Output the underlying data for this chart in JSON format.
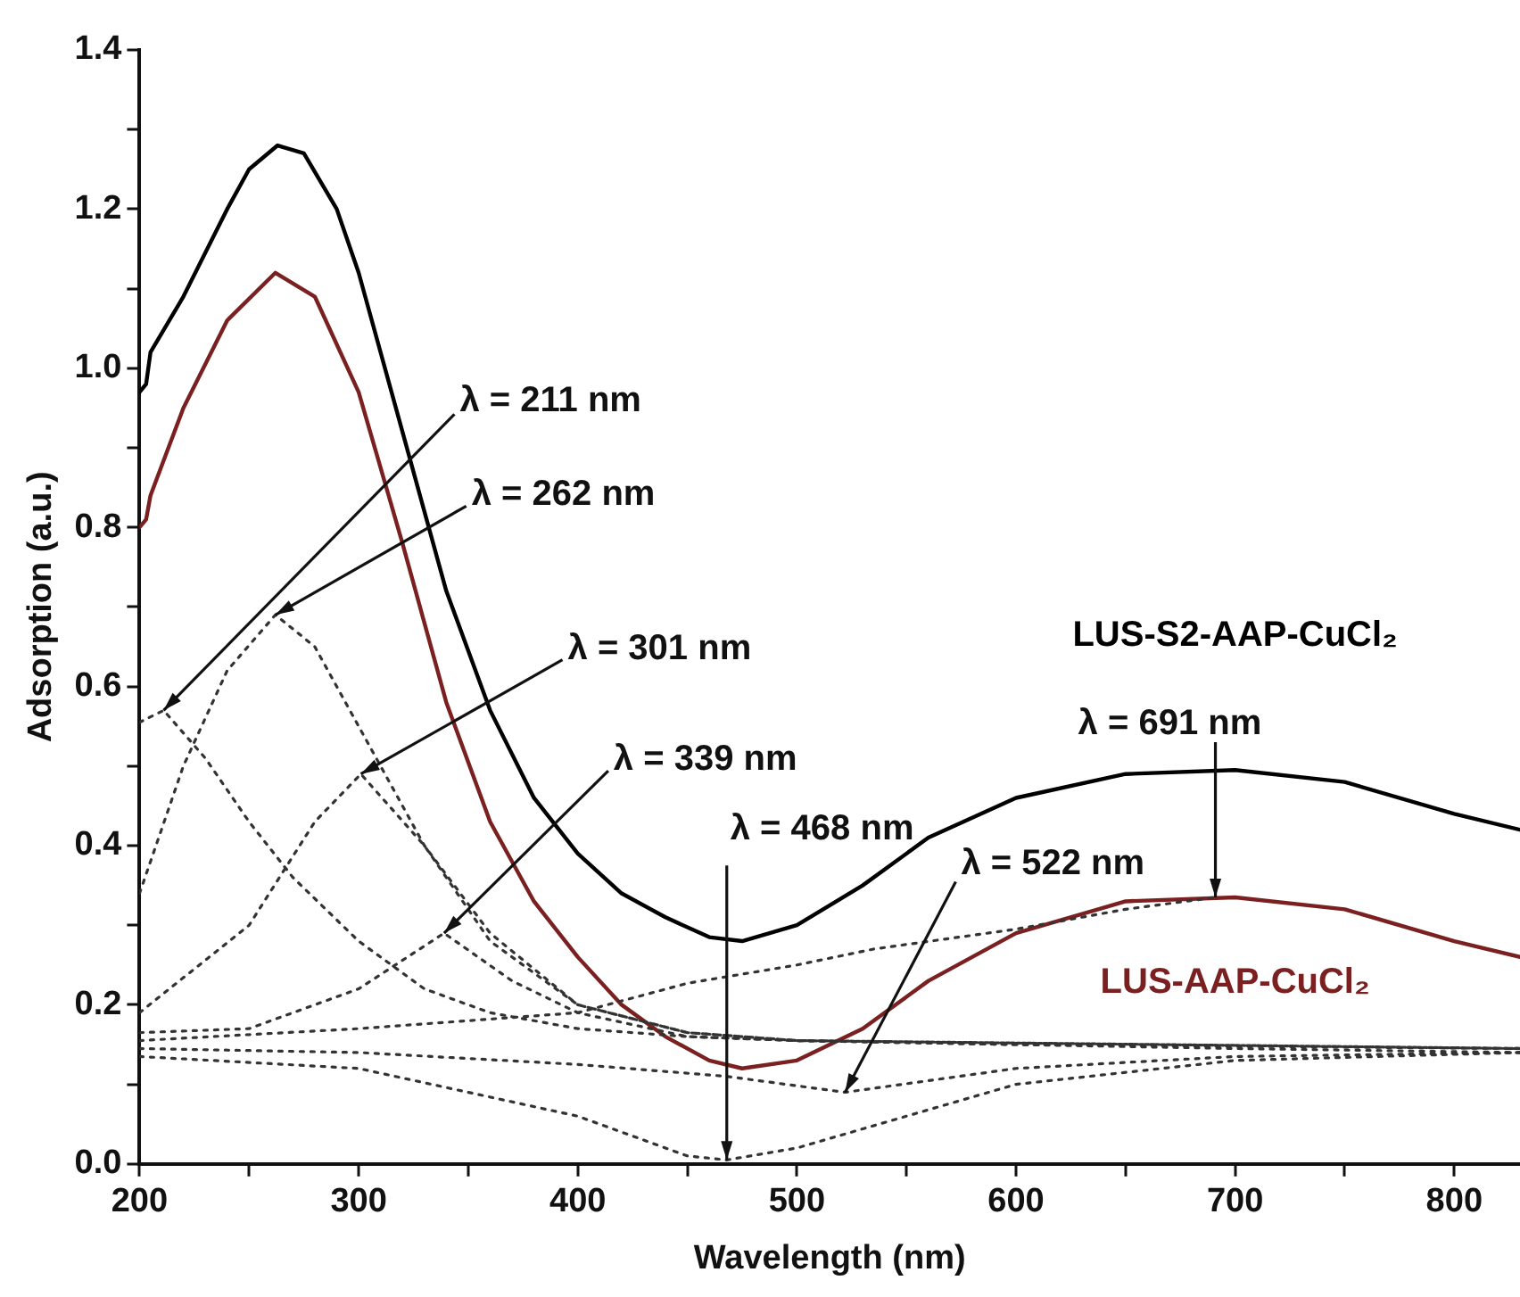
{
  "chart_data": {
    "type": "line",
    "xlabel": "Wavelength (nm)",
    "ylabel": "Adsorption (a.u.)",
    "xlim": [
      200,
      830
    ],
    "ylim": [
      0,
      1.4
    ],
    "xticks": [
      200,
      {
        "value": 250,
        "label": null
      },
      300,
      {
        "value": 350,
        "label": null
      },
      400,
      {
        "value": 450,
        "label": null
      },
      500,
      {
        "value": 550,
        "label": null
      },
      600,
      {
        "value": 650,
        "label": null
      },
      700,
      {
        "value": 750,
        "label": null
      },
      800
    ],
    "yticks": [
      {
        "value": 0,
        "label": "0.0"
      },
      {
        "value": 0.1,
        "label": null
      },
      {
        "value": 0.2,
        "label": "0.2"
      },
      {
        "value": 0.3,
        "label": null
      },
      {
        "value": 0.4,
        "label": "0.4"
      },
      {
        "value": 0.5,
        "label": null
      },
      {
        "value": 0.6,
        "label": "0.6"
      },
      {
        "value": 0.7,
        "label": null
      },
      {
        "value": 0.8,
        "label": "0.8"
      },
      {
        "value": 0.9,
        "label": null
      },
      {
        "value": 1.0,
        "label": "1.0"
      },
      {
        "value": 1.1,
        "label": null
      },
      {
        "value": 1.2,
        "label": "1.2"
      },
      {
        "value": 1.3,
        "label": null
      },
      {
        "value": 1.4,
        "label": "1.4"
      }
    ],
    "grid": false,
    "legend": false,
    "marker": "none",
    "series": [
      {
        "name": "LUS-S2-AAP-CuCl₂",
        "color": "#000000",
        "line_style": "solid",
        "x": [
          200,
          203,
          205,
          220,
          240,
          250,
          263,
          275,
          290,
          300,
          320,
          340,
          360,
          380,
          400,
          420,
          440,
          460,
          475,
          500,
          530,
          560,
          600,
          650,
          700,
          750,
          800,
          830
        ],
        "values": [
          0.97,
          0.98,
          1.02,
          1.09,
          1.2,
          1.25,
          1.28,
          1.27,
          1.2,
          1.12,
          0.92,
          0.72,
          0.57,
          0.46,
          0.39,
          0.34,
          0.31,
          0.285,
          0.28,
          0.3,
          0.35,
          0.41,
          0.46,
          0.49,
          0.495,
          0.48,
          0.44,
          0.42
        ]
      },
      {
        "name": "LUS-AAP-CuCl₂",
        "color": "#7a2020",
        "line_style": "solid",
        "x": [
          200,
          203,
          205,
          220,
          240,
          262,
          280,
          300,
          320,
          340,
          360,
          380,
          400,
          420,
          440,
          460,
          475,
          500,
          530,
          560,
          600,
          650,
          700,
          750,
          800,
          830
        ],
        "values": [
          0.8,
          0.81,
          0.84,
          0.95,
          1.06,
          1.12,
          1.09,
          0.97,
          0.78,
          0.58,
          0.43,
          0.33,
          0.26,
          0.2,
          0.16,
          0.13,
          0.12,
          0.13,
          0.17,
          0.23,
          0.29,
          0.33,
          0.335,
          0.32,
          0.28,
          0.26
        ]
      },
      {
        "color": "#333333",
        "line_style": "dotted",
        "x": [
          200,
          211,
          230,
          250,
          270,
          300,
          330,
          360,
          400,
          450,
          500,
          600,
          700,
          830
        ],
        "values": [
          0.555,
          0.57,
          0.51,
          0.43,
          0.36,
          0.28,
          0.22,
          0.19,
          0.17,
          0.16,
          0.155,
          0.15,
          0.145,
          0.14
        ]
      },
      {
        "color": "#333333",
        "line_style": "dotted",
        "x": [
          200,
          220,
          240,
          262,
          280,
          300,
          330,
          360,
          400,
          450,
          500,
          600,
          830
        ],
        "values": [
          0.34,
          0.5,
          0.62,
          0.69,
          0.65,
          0.55,
          0.4,
          0.29,
          0.2,
          0.165,
          0.155,
          0.15,
          0.145
        ]
      },
      {
        "color": "#333333",
        "line_style": "dotted",
        "x": [
          200,
          250,
          280,
          301,
          330,
          360,
          400,
          450,
          500,
          830
        ],
        "values": [
          0.19,
          0.3,
          0.43,
          0.49,
          0.4,
          0.28,
          0.2,
          0.165,
          0.155,
          0.145
        ]
      },
      {
        "color": "#333333",
        "line_style": "dotted",
        "x": [
          200,
          250,
          300,
          339,
          370,
          400,
          450,
          500,
          830
        ],
        "values": [
          0.165,
          0.17,
          0.22,
          0.29,
          0.23,
          0.19,
          0.16,
          0.155,
          0.145
        ]
      },
      {
        "color": "#333333",
        "line_style": "dotted",
        "x": [
          200,
          300,
          400,
          450,
          500,
          535,
          600,
          650,
          691
        ],
        "values": [
          0.155,
          0.17,
          0.19,
          0.227,
          0.25,
          0.27,
          0.295,
          0.32,
          0.335
        ]
      },
      {
        "color": "#333333",
        "line_style": "dotted",
        "x": [
          200,
          300,
          400,
          450,
          468,
          500,
          550,
          600,
          700,
          830
        ],
        "values": [
          0.135,
          0.12,
          0.06,
          0.01,
          0.005,
          0.02,
          0.06,
          0.1,
          0.13,
          0.14
        ]
      },
      {
        "color": "#333333",
        "line_style": "dotted",
        "x": [
          200,
          300,
          400,
          468,
          522,
          600,
          700,
          830
        ],
        "values": [
          0.145,
          0.14,
          0.125,
          0.11,
          0.09,
          0.12,
          0.135,
          0.14
        ]
      }
    ],
    "annotations": [
      {
        "text": "λ = 211 nm",
        "x": 211,
        "y": 0.57
      },
      {
        "text": "λ = 262 nm",
        "x": 262,
        "y": 0.69
      },
      {
        "text": "λ = 301 nm",
        "x": 301,
        "y": 0.49
      },
      {
        "text": "λ = 339 nm",
        "x": 339,
        "y": 0.29
      },
      {
        "text": "λ = 468 nm",
        "x": 468,
        "y": 0.005
      },
      {
        "text": "λ = 522 nm",
        "x": 522,
        "y": 0.09
      },
      {
        "text": "λ = 691 nm",
        "x": 691,
        "y": 0.335
      }
    ]
  }
}
